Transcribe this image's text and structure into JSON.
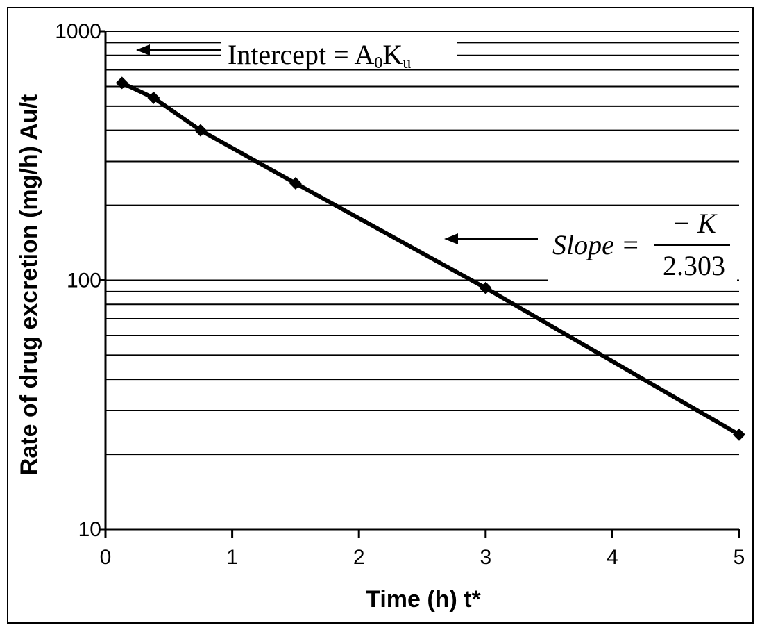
{
  "chart_data": {
    "type": "line",
    "xlabel": "Time (h) t*",
    "ylabel": "Rate of drug excretion (mg/h) Au/t",
    "yscale": "log",
    "xlim": [
      0,
      5
    ],
    "ylim": [
      10,
      1000
    ],
    "x_ticks": [
      "0",
      "1",
      "2",
      "3",
      "4",
      "5"
    ],
    "y_ticks": [
      "10",
      "100",
      "1000"
    ],
    "grid": "horizontal",
    "series": [
      {
        "x": [
          0.13,
          0.38,
          0.75,
          1.5,
          3.0,
          5.0
        ],
        "y": [
          620,
          540,
          400,
          245,
          93,
          24
        ]
      }
    ],
    "annotations": {
      "intercept": {
        "text": "Intercept = A",
        "sub0": "0",
        "mid": "K",
        "sub1": "u"
      },
      "slope": {
        "lhs": "Slope =",
        "numerator": "− K",
        "denominator": "2.303"
      }
    }
  },
  "colors": {
    "line": "#000000",
    "grid": "#000000",
    "background": "#ffffff"
  }
}
